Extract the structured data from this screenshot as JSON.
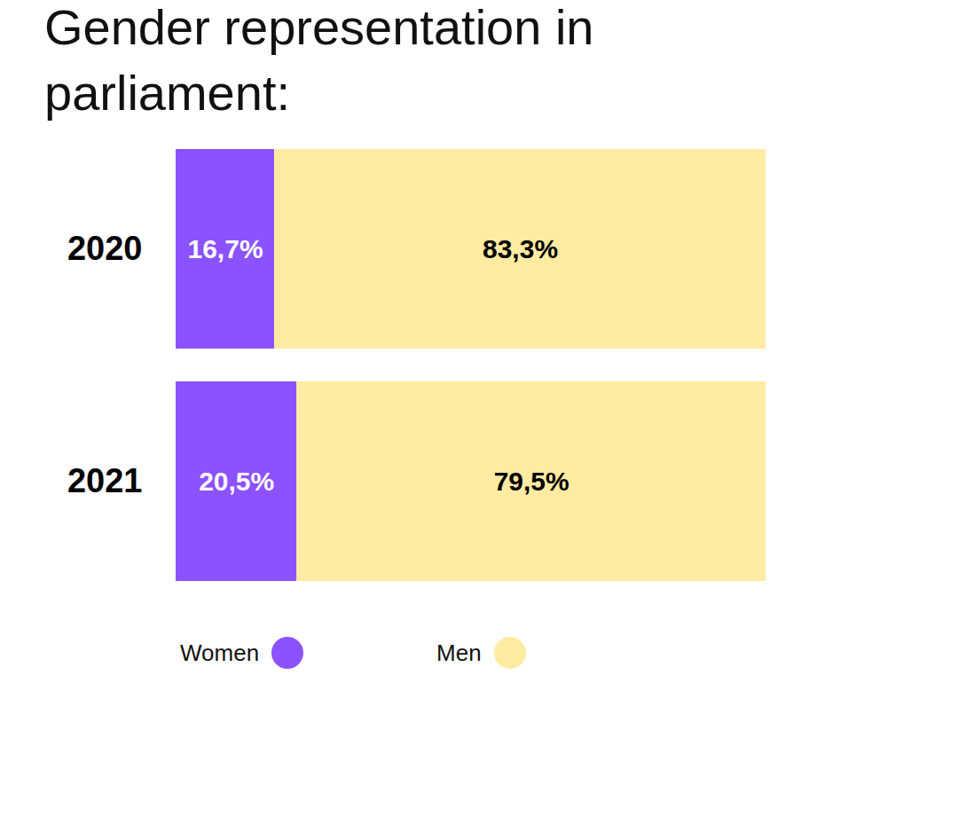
{
  "chart_data": {
    "type": "bar",
    "title": "Gender representation in parliament:",
    "orientation": "horizontal",
    "stacked": true,
    "data_labels": true,
    "tick_labels": "y",
    "legend": "bottom",
    "categories": [
      "2020",
      "2021"
    ],
    "xlim": [
      0,
      100
    ],
    "series": [
      {
        "name": "Women",
        "color": "#8c52ff",
        "values": [
          16.7,
          20.5
        ],
        "value_labels": [
          "16,7%",
          "20,5%"
        ]
      },
      {
        "name": "Men",
        "color": "#ffeba1",
        "values": [
          83.3,
          79.5
        ],
        "value_labels": [
          "83,3%",
          "79,5%"
        ]
      }
    ]
  }
}
